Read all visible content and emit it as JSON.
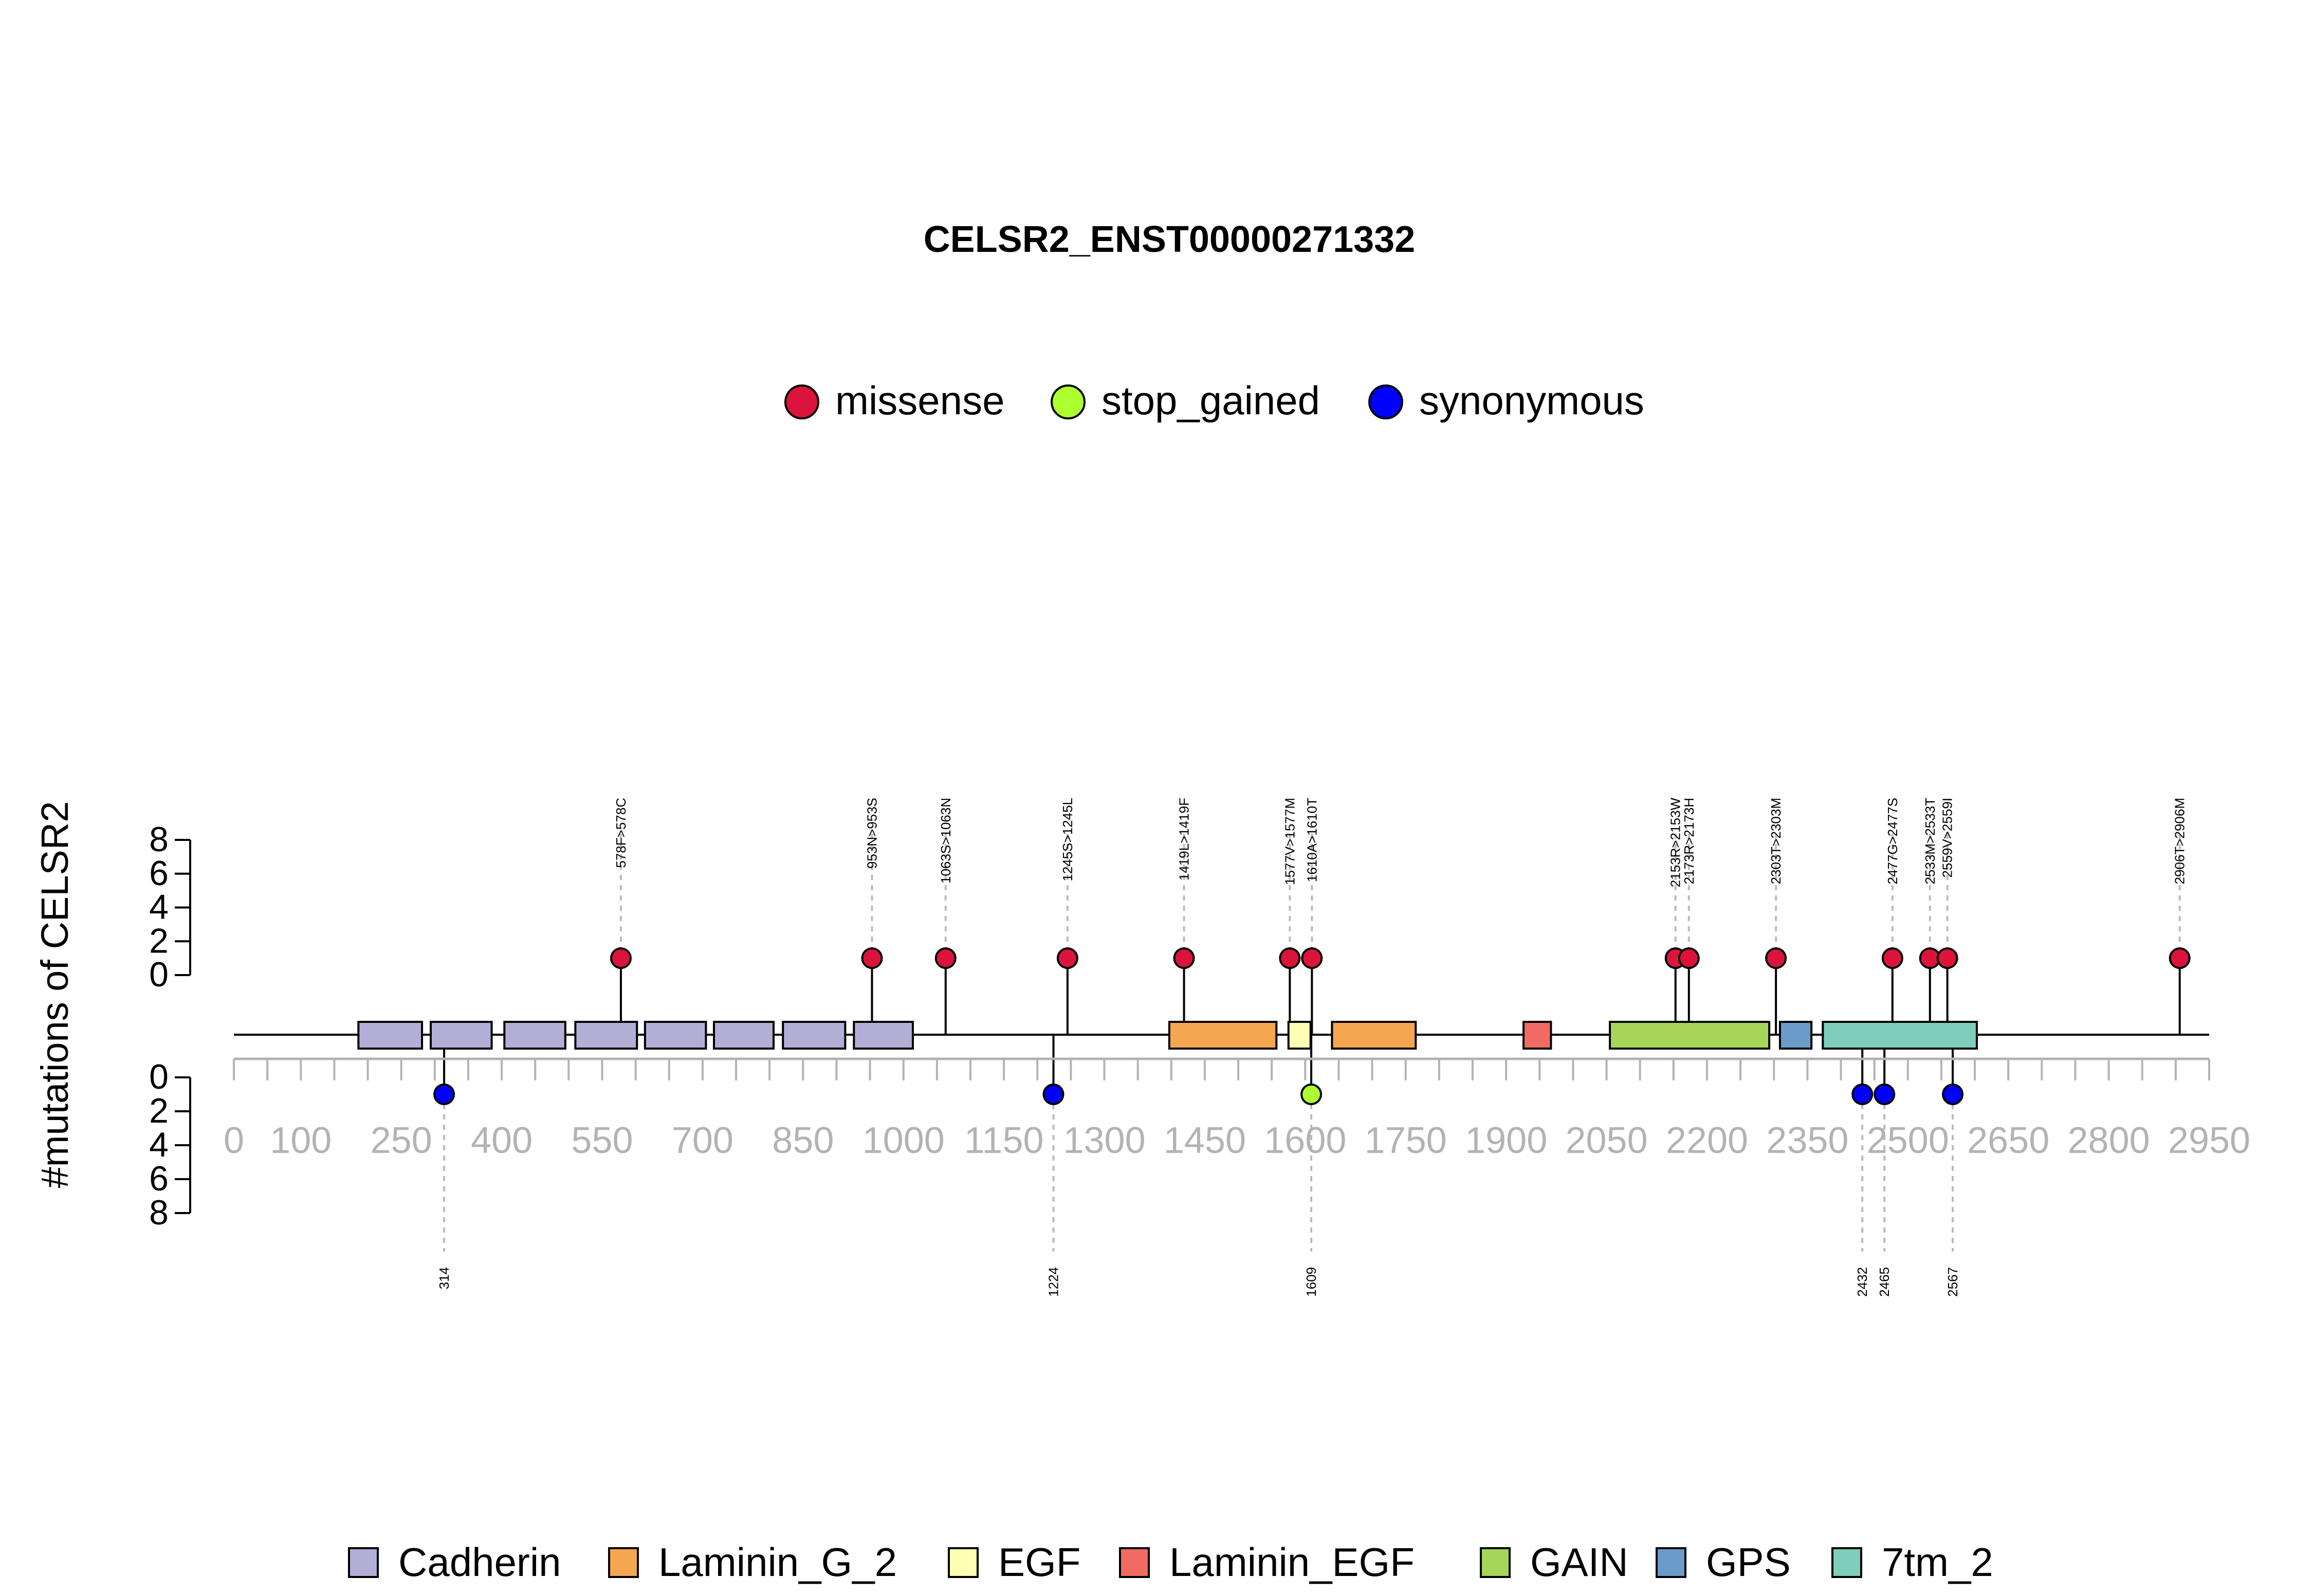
{
  "chart_data": {
    "type": "lollipop",
    "title": "CELSR2_ENST00000271332",
    "ylabel": "#mutations of CELSR2",
    "xlim": [
      0,
      2950
    ],
    "x_ticks_major": [
      0,
      100,
      250,
      400,
      550,
      700,
      850,
      1000,
      1150,
      1300,
      1450,
      1600,
      1750,
      1900,
      2050,
      2200,
      2350,
      2500,
      2650,
      2800,
      2950
    ],
    "x_ticks_minor_step": 50,
    "y_ticks": [
      0,
      2,
      4,
      6,
      8
    ],
    "y_upper_range": [
      0,
      8
    ],
    "y_lower_range": [
      0,
      8
    ],
    "mutation_legend": [
      {
        "label": "missense",
        "color": "#DC143C"
      },
      {
        "label": "stop_gained",
        "color": "#ADFF2F"
      },
      {
        "label": "synonymous",
        "color": "#0000FF"
      }
    ],
    "domain_legend": [
      {
        "label": "Cadherin",
        "color": "#B3AED6"
      },
      {
        "label": "Laminin_G_2",
        "color": "#F5A650"
      },
      {
        "label": "EGF",
        "color": "#FFFFB3"
      },
      {
        "label": "Laminin_EGF",
        "color": "#F26B63"
      },
      {
        "label": "GAIN",
        "color": "#A5D65A"
      },
      {
        "label": "GPS",
        "color": "#6B9BC9"
      },
      {
        "label": "7tm_2",
        "color": "#7FCDBB"
      }
    ],
    "domains": [
      {
        "name": "Cadherin",
        "start": 186,
        "end": 281
      },
      {
        "name": "Cadherin",
        "start": 294,
        "end": 385
      },
      {
        "name": "Cadherin",
        "start": 404,
        "end": 495
      },
      {
        "name": "Cadherin",
        "start": 510,
        "end": 602
      },
      {
        "name": "Cadherin",
        "start": 614,
        "end": 705
      },
      {
        "name": "Cadherin",
        "start": 717,
        "end": 806
      },
      {
        "name": "Cadherin",
        "start": 820,
        "end": 913
      },
      {
        "name": "Cadherin",
        "start": 926,
        "end": 1014
      },
      {
        "name": "Laminin_G_2",
        "start": 1397,
        "end": 1557
      },
      {
        "name": "EGF",
        "start": 1575,
        "end": 1608
      },
      {
        "name": "Laminin_G_2",
        "start": 1640,
        "end": 1765
      },
      {
        "name": "Laminin_EGF",
        "start": 1926,
        "end": 1967
      },
      {
        "name": "GAIN",
        "start": 2055,
        "end": 2293
      },
      {
        "name": "GPS",
        "start": 2309,
        "end": 2356
      },
      {
        "name": "7tm_2",
        "start": 2373,
        "end": 2603
      }
    ],
    "upper_mutations": [
      {
        "pos": 578,
        "label": "578F>578C",
        "type": "missense",
        "count": 1
      },
      {
        "pos": 953,
        "label": "953N>953S",
        "type": "missense",
        "count": 1
      },
      {
        "pos": 1063,
        "label": "1063S>1063N",
        "type": "missense",
        "count": 1
      },
      {
        "pos": 1245,
        "label": "1245S>1245L",
        "type": "missense",
        "count": 1
      },
      {
        "pos": 1419,
        "label": "1419L>1419F",
        "type": "missense",
        "count": 1
      },
      {
        "pos": 1577,
        "label": "1577V>1577M",
        "type": "missense",
        "count": 1
      },
      {
        "pos": 1610,
        "label": "1610A>1610T",
        "type": "missense",
        "count": 1
      },
      {
        "pos": 2153,
        "label": "2153R>2153W",
        "type": "missense",
        "count": 1
      },
      {
        "pos": 2173,
        "label": "2173R>2173H",
        "type": "missense",
        "count": 1
      },
      {
        "pos": 2303,
        "label": "2303T>2303M",
        "type": "missense",
        "count": 1
      },
      {
        "pos": 2477,
        "label": "2477G>2477S",
        "type": "missense",
        "count": 1
      },
      {
        "pos": 2533,
        "label": "2533M>2533T",
        "type": "missense",
        "count": 1
      },
      {
        "pos": 2559,
        "label": "2559V>2559I",
        "type": "missense",
        "count": 1
      },
      {
        "pos": 2906,
        "label": "2906T>2906M",
        "type": "missense",
        "count": 1
      }
    ],
    "lower_mutations": [
      {
        "pos": 314,
        "label": "314",
        "type": "synonymous",
        "count": 1
      },
      {
        "pos": 1224,
        "label": "1224",
        "type": "synonymous",
        "count": 1
      },
      {
        "pos": 1609,
        "label": "1609",
        "type": "stop_gained",
        "count": 1
      },
      {
        "pos": 2432,
        "label": "2432",
        "type": "synonymous",
        "count": 1
      },
      {
        "pos": 2465,
        "label": "2465",
        "type": "synonymous",
        "count": 1
      },
      {
        "pos": 2567,
        "label": "2567",
        "type": "synonymous",
        "count": 1
      }
    ]
  }
}
